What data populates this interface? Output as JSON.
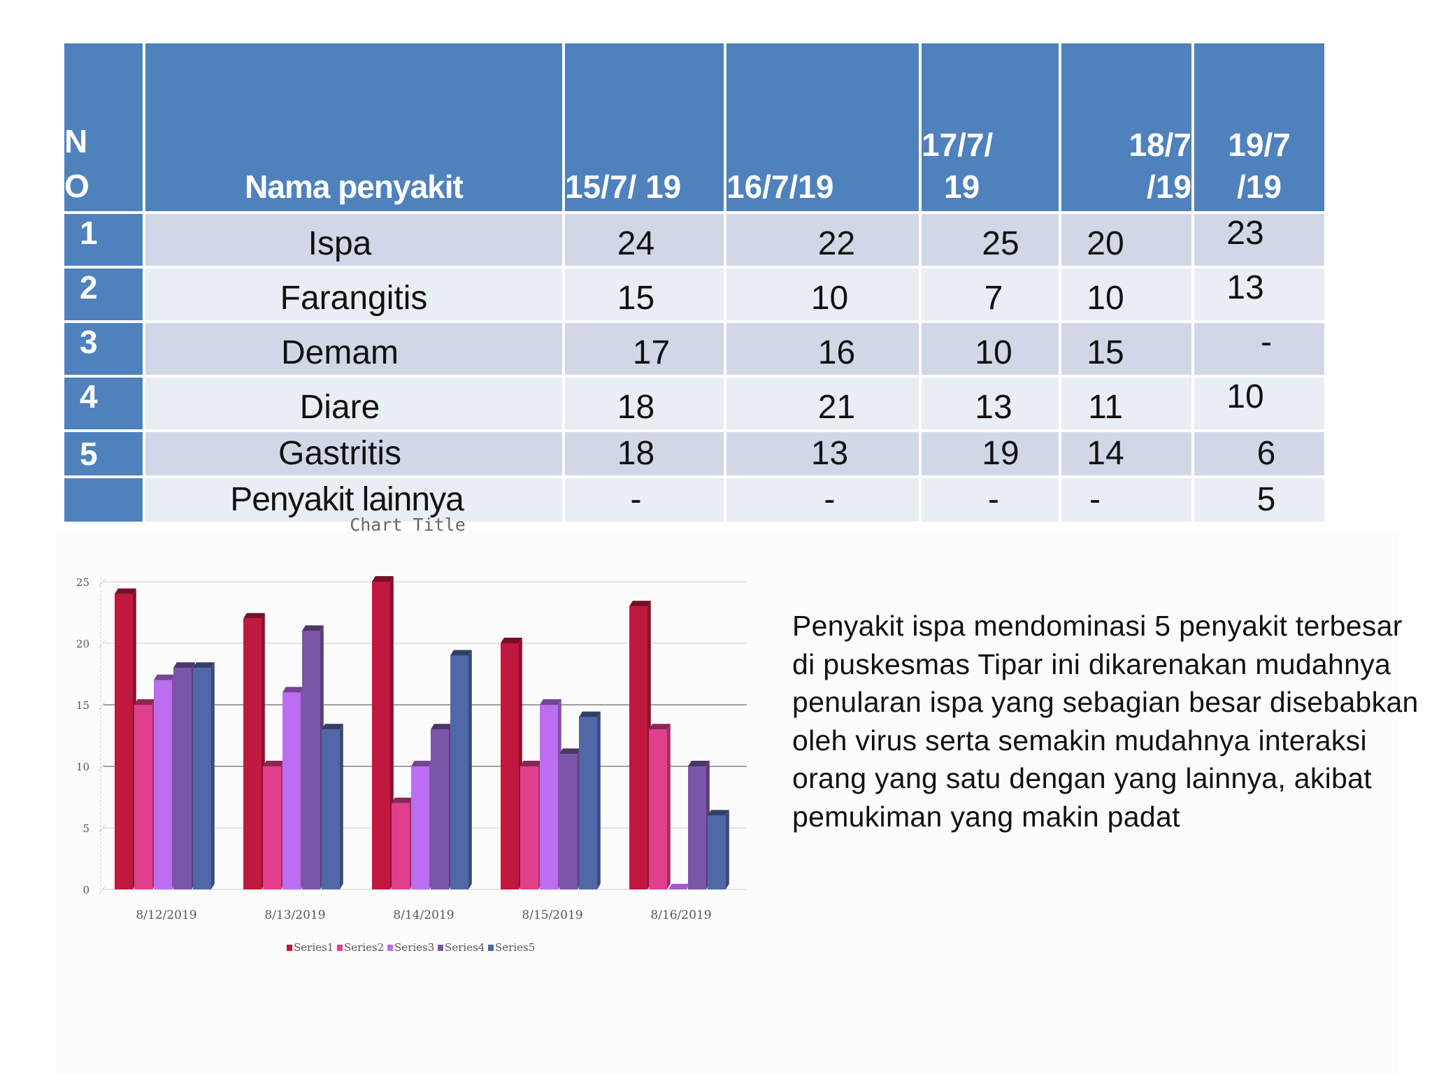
{
  "table": {
    "headers": {
      "no_line1": "N",
      "no_line2": "O",
      "name": "Nama penyakit",
      "d1": "15/7/ 19",
      "d2": "16/7/19",
      "d3_line1": "17/7/",
      "d3_line2": "19",
      "d4_line1": "18/7",
      "d4_line2": "/19",
      "d5_line1": "19/7",
      "d5_line2": "/19"
    },
    "rows": [
      {
        "no": "1",
        "name": "Ispa",
        "v1": "24",
        "v2": "22",
        "v3": "25",
        "v4": "20",
        "v5": "23"
      },
      {
        "no": "2",
        "name": "Farangitis",
        "v1": "15",
        "v2": "10",
        "v3": "7",
        "v4": "10",
        "v5": "13"
      },
      {
        "no": "3",
        "name": "Demam",
        "v1": "17",
        "v2": "16",
        "v3": "10",
        "v4": "15",
        "v5": "-"
      },
      {
        "no": "4",
        "name": "Diare",
        "v1": "18",
        "v2": "21",
        "v3": "13",
        "v4": "11",
        "v5": "10"
      },
      {
        "no": "5",
        "name": "Gastritis",
        "v1": "18",
        "v2": "13",
        "v3": "19",
        "v4": "14",
        "v5": "6"
      },
      {
        "no": "",
        "name": "Penyakit lainnya",
        "v1": "-",
        "v2": "-",
        "v3": "-",
        "v4": "-",
        "v5": "5"
      }
    ]
  },
  "chart_data": {
    "type": "bar",
    "title": "Chart Title",
    "categories": [
      "8/12/2019",
      "8/13/2019",
      "8/14/2019",
      "8/15/2019",
      "8/16/2019"
    ],
    "series": [
      {
        "name": "Series1",
        "color": "#c0183e",
        "values": [
          24,
          22,
          25,
          20,
          23
        ]
      },
      {
        "name": "Series2",
        "color": "#e03f8c",
        "values": [
          15,
          10,
          7,
          10,
          13
        ]
      },
      {
        "name": "Series3",
        "color": "#bb6ef0",
        "values": [
          17,
          16,
          10,
          15,
          0
        ]
      },
      {
        "name": "Series4",
        "color": "#7b55a8",
        "values": [
          18,
          21,
          13,
          11,
          10
        ]
      },
      {
        "name": "Series5",
        "color": "#5068a8",
        "values": [
          18,
          13,
          19,
          14,
          6
        ]
      }
    ],
    "ylim": [
      0,
      25
    ],
    "yticks": [
      0,
      5,
      10,
      15,
      20,
      25
    ],
    "grid": true,
    "legend": "bottom"
  },
  "note": "Penyakit ispa mendominasi 5 penyakit terbesar di puskesmas Tipar ini dikarenakan mudahnya penularan ispa yang sebagian besar disebabkan oleh virus serta semakin mudahnya interaksi orang yang satu dengan yang lainnya, akibat pemukiman yang makin padat"
}
